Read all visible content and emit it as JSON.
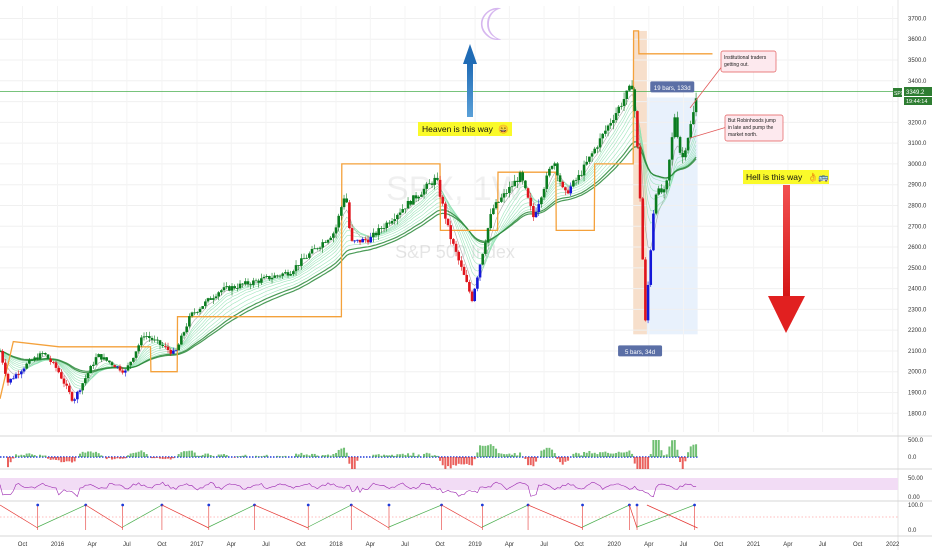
{
  "chart_data": {
    "type": "candlestick",
    "watermark": {
      "symbol": "SPX, 1W",
      "name": "S&P 500 Index"
    },
    "y_axis": {
      "ticks": [
        1800,
        1900,
        2000,
        2100,
        2200,
        2300,
        2400,
        2500,
        2600,
        2700,
        2800,
        2900,
        3000,
        3100,
        3200,
        3300,
        3400,
        3500,
        3600,
        3700
      ],
      "tick_labels": [
        "1800.0",
        "1900.0",
        "2000.0",
        "2100.0",
        "2200.0",
        "2300.0",
        "2400.0",
        "2500.0",
        "2600.0",
        "2700.0",
        "2800.0",
        "2900.0",
        "3000.0",
        "3100.0",
        "3200.0",
        "3300.0",
        "3400.0",
        "3500.0",
        "3600.0",
        "3700.0"
      ],
      "ylim": [
        1710,
        3760
      ]
    },
    "x_axis": {
      "labels": [
        "Oct",
        "2016",
        "Apr",
        "Jul",
        "Oct",
        "2017",
        "Apr",
        "Jul",
        "Oct",
        "2018",
        "Apr",
        "Jul",
        "Oct",
        "2019",
        "Apr",
        "Jul",
        "Oct",
        "2020",
        "Apr",
        "Jul",
        "Oct",
        "2021",
        "Apr",
        "Jul",
        "Oct",
        "2022"
      ],
      "start_date": "2015-08-03",
      "end_date": "2022-01-15"
    },
    "price_badge": {
      "symbol": "SPX",
      "value": "3349.2",
      "countdown": "19:44:14"
    },
    "key_points": [
      {
        "date": "2015-08-03",
        "close": 2100
      },
      {
        "date": "2015-08-24",
        "close": 1950
      },
      {
        "date": "2015-10-15",
        "close": 2040
      },
      {
        "date": "2015-11-25",
        "close": 2090
      },
      {
        "date": "2016-01-01",
        "close": 2010
      },
      {
        "date": "2016-02-11",
        "close": 1860
      },
      {
        "date": "2016-04-15",
        "close": 2080
      },
      {
        "date": "2016-06-27",
        "close": 2000
      },
      {
        "date": "2016-08-15",
        "close": 2180
      },
      {
        "date": "2016-11-04",
        "close": 2085
      },
      {
        "date": "2016-12-15",
        "close": 2270
      },
      {
        "date": "2017-03-01",
        "close": 2390
      },
      {
        "date": "2017-06-15",
        "close": 2440
      },
      {
        "date": "2017-09-01",
        "close": 2480
      },
      {
        "date": "2017-12-29",
        "close": 2675
      },
      {
        "date": "2018-01-26",
        "close": 2870
      },
      {
        "date": "2018-02-09",
        "close": 2620
      },
      {
        "date": "2018-04-01",
        "close": 2640
      },
      {
        "date": "2018-06-15",
        "close": 2770
      },
      {
        "date": "2018-09-21",
        "close": 2930
      },
      {
        "date": "2018-10-26",
        "close": 2660
      },
      {
        "date": "2018-12-24",
        "close": 2350
      },
      {
        "date": "2019-02-15",
        "close": 2780
      },
      {
        "date": "2019-04-30",
        "close": 2945
      },
      {
        "date": "2019-06-03",
        "close": 2745
      },
      {
        "date": "2019-07-26",
        "close": 3025
      },
      {
        "date": "2019-08-23",
        "close": 2850
      },
      {
        "date": "2019-10-01",
        "close": 2940
      },
      {
        "date": "2019-12-31",
        "close": 3230
      },
      {
        "date": "2020-02-19",
        "close": 3385
      },
      {
        "date": "2020-03-06",
        "close": 2970
      },
      {
        "date": "2020-03-23",
        "close": 2240
      },
      {
        "date": "2020-04-17",
        "close": 2870
      },
      {
        "date": "2020-05-15",
        "close": 2860
      },
      {
        "date": "2020-06-08",
        "close": 3230
      },
      {
        "date": "2020-06-26",
        "close": 3010
      },
      {
        "date": "2020-07-24",
        "close": 3215
      },
      {
        "date": "2020-08-07",
        "close": 3349
      }
    ],
    "stepline": [
      {
        "date": "2015-08-03",
        "value": 1870
      },
      {
        "date": "2015-09-07",
        "value": 2145
      },
      {
        "date": "2016-01-05",
        "value": 2120
      },
      {
        "date": "2016-09-01",
        "value": 2120
      },
      {
        "date": "2016-09-02",
        "value": 2000
      },
      {
        "date": "2016-11-10",
        "value": 2000
      },
      {
        "date": "2016-11-11",
        "value": 2265
      },
      {
        "date": "2018-01-15",
        "value": 2265
      },
      {
        "date": "2018-01-16",
        "value": 3000
      },
      {
        "date": "2018-10-01",
        "value": 3000
      },
      {
        "date": "2018-10-02",
        "value": 2680
      },
      {
        "date": "2019-03-01",
        "value": 2680
      },
      {
        "date": "2019-03-02",
        "value": 2960
      },
      {
        "date": "2019-08-01",
        "value": 2960
      },
      {
        "date": "2019-08-02",
        "value": 2680
      },
      {
        "date": "2019-11-10",
        "value": 2680
      },
      {
        "date": "2019-11-11",
        "value": 3000
      },
      {
        "date": "2020-02-20",
        "value": 3000
      },
      {
        "date": "2020-02-21",
        "value": 3640
      },
      {
        "date": "2020-03-05",
        "value": 3640
      },
      {
        "date": "2020-03-06",
        "value": 3530
      },
      {
        "date": "2020-09-15",
        "value": 3530
      }
    ],
    "highlights": [
      {
        "from": "2020-02-20",
        "to": "2020-03-27",
        "price_from": 2180,
        "price_to": 3640,
        "color": "#f6d9c2",
        "label": "5 bars, 34d"
      },
      {
        "from": "2020-03-27",
        "to": "2020-08-07",
        "price_from": 2180,
        "price_to": 3320,
        "color": "#e4eefb",
        "label": "19 bars, 133d"
      }
    ],
    "horizontal_line": {
      "value": 3349
    },
    "annotations": [
      {
        "id": "heaven",
        "text": "Heaven is this way",
        "emoji": "😄",
        "bg": "#fafa2a"
      },
      {
        "id": "hell",
        "text": "Hell is this way",
        "emoji": "👌🚌",
        "bg": "#fafa2a"
      },
      {
        "id": "institutional",
        "lines": [
          "Institutional traders",
          "getting out."
        ]
      },
      {
        "id": "robinhood",
        "lines": [
          "But Robinhoods jump",
          "in late and pump the",
          "market north."
        ]
      }
    ],
    "moon_glyph": "☾",
    "panels": [
      {
        "name": "histogram",
        "tick_labels": [
          "500.0",
          "0.0"
        ],
        "colors": {
          "positive": "#4caf50",
          "negative": "#e53935",
          "zero_dots": "#1e3bd8"
        }
      },
      {
        "name": "oscillator",
        "tick_labels": [
          "50.00",
          "0.00"
        ],
        "line_color": "#9c27b0",
        "band_color": "#f2dcf5"
      },
      {
        "name": "sawtooth",
        "tick_labels": [
          "100.0",
          "0.0"
        ],
        "up_color": "#4caf50",
        "down_color": "#e53935"
      }
    ],
    "colors": {
      "bull": "#0a7c1f",
      "bear": "#e0141c",
      "blue": "#1418d8",
      "step": "#f4a13b",
      "ma_dark": "#2a8a3a",
      "ma_light": "#8ee0b0",
      "ma_grey": "#9a9a9a",
      "hline": "#4caf50"
    }
  }
}
